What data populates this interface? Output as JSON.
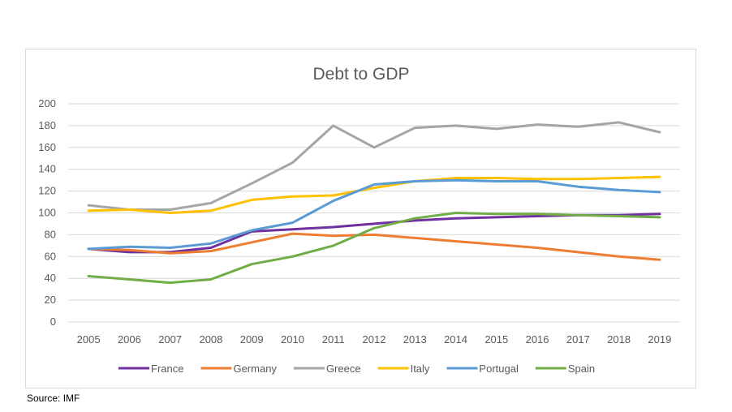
{
  "source_note": "Source: IMF",
  "chart_data": {
    "type": "line",
    "title": "Debt to GDP",
    "xlabel": "",
    "ylabel": "",
    "ylim": [
      0,
      200
    ],
    "y_ticks": [
      0,
      20,
      40,
      60,
      80,
      100,
      120,
      140,
      160,
      180,
      200
    ],
    "categories": [
      "2005",
      "2006",
      "2007",
      "2008",
      "2009",
      "2010",
      "2011",
      "2012",
      "2013",
      "2014",
      "2015",
      "2016",
      "2017",
      "2018",
      "2019"
    ],
    "grid": true,
    "legend_position": "bottom",
    "series": [
      {
        "name": "France",
        "color": "#7030a0",
        "values": [
          67,
          64,
          64,
          68,
          83,
          85,
          87,
          90,
          93,
          95,
          96,
          97,
          98,
          98,
          99
        ]
      },
      {
        "name": "Germany",
        "color": "#ed7d31",
        "values": [
          67,
          66,
          63,
          65,
          73,
          81,
          79,
          80,
          77,
          74,
          71,
          68,
          64,
          60,
          57
        ]
      },
      {
        "name": "Greece",
        "color": "#a5a5a5",
        "values": [
          107,
          103,
          103,
          109,
          127,
          146,
          180,
          160,
          178,
          180,
          177,
          181,
          179,
          183,
          174
        ]
      },
      {
        "name": "Italy",
        "color": "#ffc000",
        "values": [
          102,
          103,
          100,
          102,
          112,
          115,
          116,
          123,
          129,
          132,
          132,
          131,
          131,
          132,
          133
        ]
      },
      {
        "name": "Portugal",
        "color": "#5b9bd5",
        "values": [
          67,
          69,
          68,
          72,
          84,
          91,
          111,
          126,
          129,
          130,
          129,
          129,
          124,
          121,
          119
        ]
      },
      {
        "name": "Spain",
        "color": "#70ad47",
        "values": [
          42,
          39,
          36,
          39,
          53,
          60,
          70,
          86,
          95,
          100,
          99,
          99,
          98,
          97,
          96
        ]
      }
    ]
  }
}
